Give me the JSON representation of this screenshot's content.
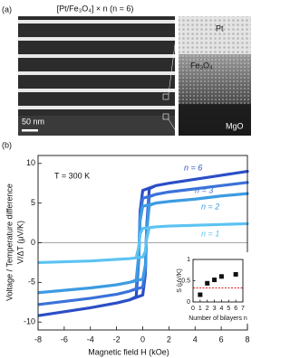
{
  "panel_a": {
    "label": "(a)",
    "title": "[Pt/Fe₃O₄] × n (n = 6)",
    "scale_bar": "50 nm",
    "layers": [
      "Pt",
      "Fe₃O₄",
      "MgO"
    ]
  },
  "chart_data": [
    {
      "type": "line",
      "panel_label": "(b)",
      "annotation": "T = 300 K",
      "x_label": "Magnetic field H (kOe)",
      "y_label": [
        "Voltage / Temperature difference",
        "V/ΔT (μV/K)"
      ],
      "x": [
        -8,
        -6,
        -4,
        -2,
        -1,
        0,
        0.2,
        0.3,
        0.5,
        1,
        2,
        4,
        6,
        8,
        8,
        6,
        4,
        2,
        1,
        0,
        -0.2,
        -0.3,
        -0.5,
        -1,
        -2,
        -4,
        -6,
        -8
      ],
      "xlim": [
        -8,
        8
      ],
      "xticks": [
        -8,
        -6,
        -4,
        -2,
        0,
        2,
        4,
        6,
        8
      ],
      "ylim": [
        -11,
        11
      ],
      "yticks": [
        -10,
        -5,
        0,
        5,
        10
      ],
      "series": [
        {
          "name": "n = 6",
          "color": "#2b4ec6",
          "values": [
            -9.2,
            -8.7,
            -8.2,
            -7.6,
            -7.2,
            -6.6,
            -4,
            2,
            6.8,
            7.2,
            7.5,
            8.0,
            8.5,
            9.0,
            9.0,
            8.5,
            8.0,
            7.5,
            7.2,
            6.6,
            4,
            -2,
            -6.8,
            -7.2,
            -7.6,
            -8.2,
            -8.7,
            -9.2
          ]
        },
        {
          "name": "n = 3",
          "color": "#3b72da",
          "values": [
            -7.8,
            -7.4,
            -7.0,
            -6.5,
            -6.1,
            -5.6,
            -3.4,
            1.7,
            5.8,
            6.1,
            6.4,
            6.8,
            7.2,
            7.6,
            7.6,
            7.2,
            6.8,
            6.4,
            6.1,
            5.6,
            3.4,
            -1.7,
            -5.8,
            -6.1,
            -6.5,
            -7.0,
            -7.4,
            -7.8
          ]
        },
        {
          "name": "n = 2",
          "color": "#3d9be2",
          "values": [
            -6.3,
            -6.0,
            -5.7,
            -5.3,
            -5.0,
            -4.6,
            -2.8,
            1.4,
            4.7,
            5.0,
            5.2,
            5.5,
            5.9,
            6.2,
            6.2,
            5.9,
            5.5,
            5.2,
            5.0,
            4.6,
            2.8,
            -1.4,
            -4.7,
            -5.0,
            -5.3,
            -5.7,
            -6.0,
            -6.3
          ]
        },
        {
          "name": "n = 1",
          "color": "#5cc3f2",
          "values": [
            -2.5,
            -2.4,
            -2.3,
            -2.1,
            -2.0,
            -1.8,
            -1.1,
            0.5,
            1.9,
            2.0,
            2.1,
            2.2,
            2.3,
            2.4,
            2.4,
            2.3,
            2.2,
            2.1,
            2.0,
            1.8,
            1.1,
            -0.5,
            -1.9,
            -2.0,
            -2.1,
            -2.3,
            -2.4,
            -2.5
          ]
        }
      ]
    },
    {
      "type": "scatter",
      "x_label": "Number of bilayers n",
      "y_label": "S (μV/K)",
      "x": [
        1,
        2,
        3,
        4,
        6
      ],
      "values": [
        0.17,
        0.44,
        0.52,
        0.6,
        0.65
      ],
      "color": "#111111",
      "xlim": [
        0,
        7
      ],
      "xticks": [
        0,
        1,
        2,
        3,
        4,
        5,
        6,
        7
      ],
      "ylim": [
        0,
        1
      ],
      "yticks": [
        0,
        0.5,
        1
      ],
      "reference_line": {
        "value": 0.33,
        "color": "#e02020"
      }
    }
  ]
}
